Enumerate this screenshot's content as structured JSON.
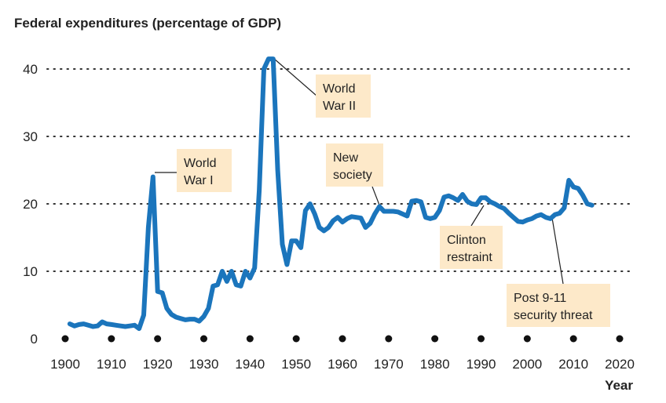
{
  "chart_data": {
    "type": "line",
    "title": "Federal expenditures (percentage of GDP)",
    "xlabel": "Year",
    "ylabel": "",
    "xlim": [
      1900,
      2020
    ],
    "ylim": [
      0,
      40
    ],
    "x_ticks": [
      "1900",
      "1910",
      "1920",
      "1930",
      "1940",
      "1950",
      "1960",
      "1970",
      "1980",
      "1990",
      "2000",
      "2010",
      "2020"
    ],
    "y_ticks": [
      "0",
      "10",
      "20",
      "30",
      "40"
    ],
    "grid": true,
    "line_color": "#1b75bc",
    "annotation_fill": "#fde9c9",
    "series": [
      {
        "x": [
          1901,
          1902,
          1903,
          1904,
          1905,
          1906,
          1907,
          1908,
          1909,
          1910,
          1911,
          1912,
          1913,
          1914,
          1915,
          1916,
          1917,
          1918,
          1919,
          1920,
          1921,
          1922,
          1923,
          1924,
          1925,
          1926,
          1927,
          1928,
          1929,
          1930,
          1931,
          1932,
          1933,
          1934,
          1935,
          1936,
          1937,
          1938,
          1939,
          1940,
          1941,
          1942,
          1943,
          1944,
          1945,
          1946,
          1947,
          1948,
          1949,
          1950,
          1951,
          1952,
          1953,
          1954,
          1955,
          1956,
          1957,
          1958,
          1959,
          1960,
          1961,
          1962,
          1963,
          1964,
          1965,
          1966,
          1967,
          1968,
          1969,
          1970,
          1971,
          1972,
          1973,
          1974,
          1975,
          1976,
          1977,
          1978,
          1979,
          1980,
          1981,
          1982,
          1983,
          1984,
          1985,
          1986,
          1987,
          1988,
          1989,
          1990,
          1991,
          1992,
          1993,
          1994,
          1995,
          1996,
          1997,
          1998,
          1999,
          2000,
          2001,
          2002,
          2003,
          2004,
          2005,
          2006,
          2007,
          2008,
          2009,
          2010,
          2011,
          2012,
          2013,
          2014
        ],
        "values": [
          2.2,
          1.9,
          2.1,
          2.2,
          2.0,
          1.8,
          1.9,
          2.5,
          2.2,
          2.1,
          2.0,
          1.9,
          1.8,
          1.9,
          2.0,
          1.5,
          3.5,
          16.5,
          24.0,
          7.0,
          6.8,
          4.5,
          3.6,
          3.2,
          3.0,
          2.8,
          2.9,
          2.9,
          2.6,
          3.3,
          4.5,
          7.8,
          8.0,
          10.0,
          8.5,
          10.0,
          8.0,
          7.8,
          10.0,
          9.0,
          10.5,
          22.0,
          40.0,
          41.5,
          41.5,
          25.0,
          14.0,
          11.0,
          14.5,
          14.5,
          13.5,
          19.0,
          20.0,
          18.5,
          16.5,
          16.0,
          16.5,
          17.5,
          18.0,
          17.3,
          17.8,
          18.1,
          18.0,
          17.9,
          16.5,
          17.1,
          18.5,
          19.6,
          18.9,
          18.9,
          18.9,
          18.8,
          18.5,
          18.2,
          20.4,
          20.5,
          20.3,
          18.0,
          17.8,
          18.0,
          19.0,
          21.0,
          21.2,
          20.9,
          20.5,
          21.4,
          20.4,
          20.0,
          19.9,
          20.9,
          20.9,
          20.3,
          20.0,
          19.6,
          19.3,
          18.6,
          18.0,
          17.4,
          17.3,
          17.6,
          17.8,
          18.2,
          18.4,
          18.0,
          17.8,
          18.4,
          18.6,
          19.4,
          23.5,
          22.5,
          22.3,
          21.3,
          20.0,
          19.8
        ]
      }
    ],
    "annotations": [
      {
        "lines": [
          "World",
          "War I"
        ]
      },
      {
        "lines": [
          "World",
          "War II"
        ]
      },
      {
        "lines": [
          "New",
          "society"
        ]
      },
      {
        "lines": [
          "Clinton",
          "restraint"
        ]
      },
      {
        "lines": [
          "Post 9-11",
          "security threat"
        ]
      }
    ]
  }
}
